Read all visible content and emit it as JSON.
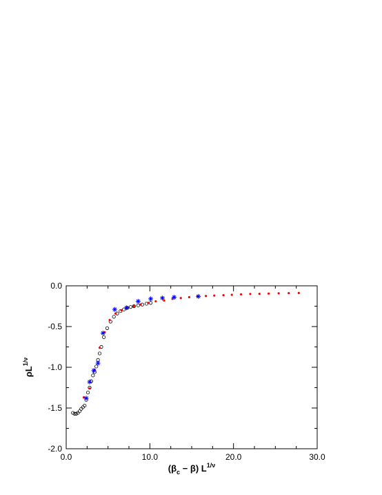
{
  "chart_data": {
    "type": "scatter",
    "title": "",
    "xlabel": {
      "pre": "(β",
      "sub": "c",
      "mid": " − β) L",
      "sup": "1/ν"
    },
    "ylabel": {
      "pre": "ρL",
      "sup": "1/ν"
    },
    "xlim": [
      0.0,
      30.0
    ],
    "ylim": [
      -2.0,
      0.0
    ],
    "xticks": [
      0,
      10,
      20,
      30
    ],
    "xtick_labels": [
      "0.0",
      "10.0",
      "20.0",
      "30.0"
    ],
    "yticks": [
      0.0,
      -0.5,
      -1.0,
      -1.5,
      -2.0
    ],
    "ytick_labels": [
      "0.0",
      "-0.5",
      "-1.0",
      "-1.5",
      "-2.0"
    ],
    "grid": false,
    "legend": "none",
    "series": [
      {
        "marker": "open-circle",
        "color": "#000000",
        "x": [
          0.8,
          1.0,
          1.2,
          1.4,
          1.6,
          1.8,
          2.0,
          2.2,
          2.4,
          2.6,
          2.8,
          3.0,
          3.2,
          3.4,
          3.6,
          3.8,
          4.0,
          4.2,
          4.5,
          4.9,
          5.3,
          5.7,
          6.1,
          6.5,
          6.9,
          7.3,
          7.7,
          8.1,
          8.6,
          9.1,
          9.6,
          10.1
        ],
        "y": [
          -1.56,
          -1.57,
          -1.57,
          -1.56,
          -1.54,
          -1.51,
          -1.49,
          -1.47,
          -1.4,
          -1.31,
          -1.25,
          -1.17,
          -1.1,
          -1.06,
          -0.99,
          -0.91,
          -0.83,
          -0.75,
          -0.63,
          -0.52,
          -0.44,
          -0.38,
          -0.34,
          -0.31,
          -0.29,
          -0.27,
          -0.26,
          -0.25,
          -0.24,
          -0.23,
          -0.22,
          -0.21
        ]
      },
      {
        "marker": "dot",
        "color": "#ff0000",
        "x": [
          2.1,
          2.8,
          3.4,
          4.0,
          4.6,
          5.2,
          5.9,
          6.6,
          7.3,
          8.1,
          8.9,
          9.8,
          10.7,
          11.7,
          12.7,
          13.7,
          14.7,
          15.7,
          16.7,
          17.7,
          18.8,
          19.8,
          20.9,
          22.0,
          23.1,
          24.2,
          25.4,
          26.6,
          27.8
        ],
        "y": [
          -1.37,
          -1.26,
          -1.03,
          -0.76,
          -0.57,
          -0.42,
          -0.34,
          -0.3,
          -0.27,
          -0.25,
          -0.23,
          -0.21,
          -0.19,
          -0.18,
          -0.16,
          -0.15,
          -0.14,
          -0.13,
          -0.125,
          -0.12,
          -0.115,
          -0.11,
          -0.105,
          -0.1,
          -0.098,
          -0.095,
          -0.092,
          -0.09,
          -0.088
        ]
      },
      {
        "marker": "asterisk",
        "color": "#0000ff",
        "x": [
          2.4,
          2.8,
          3.3,
          3.8,
          4.4,
          5.8,
          7.2,
          8.6,
          10.1,
          11.5,
          12.9,
          15.8
        ],
        "y": [
          -1.38,
          -1.18,
          -1.04,
          -0.95,
          -0.58,
          -0.29,
          -0.27,
          -0.19,
          -0.16,
          -0.15,
          -0.14,
          -0.13
        ]
      }
    ]
  }
}
